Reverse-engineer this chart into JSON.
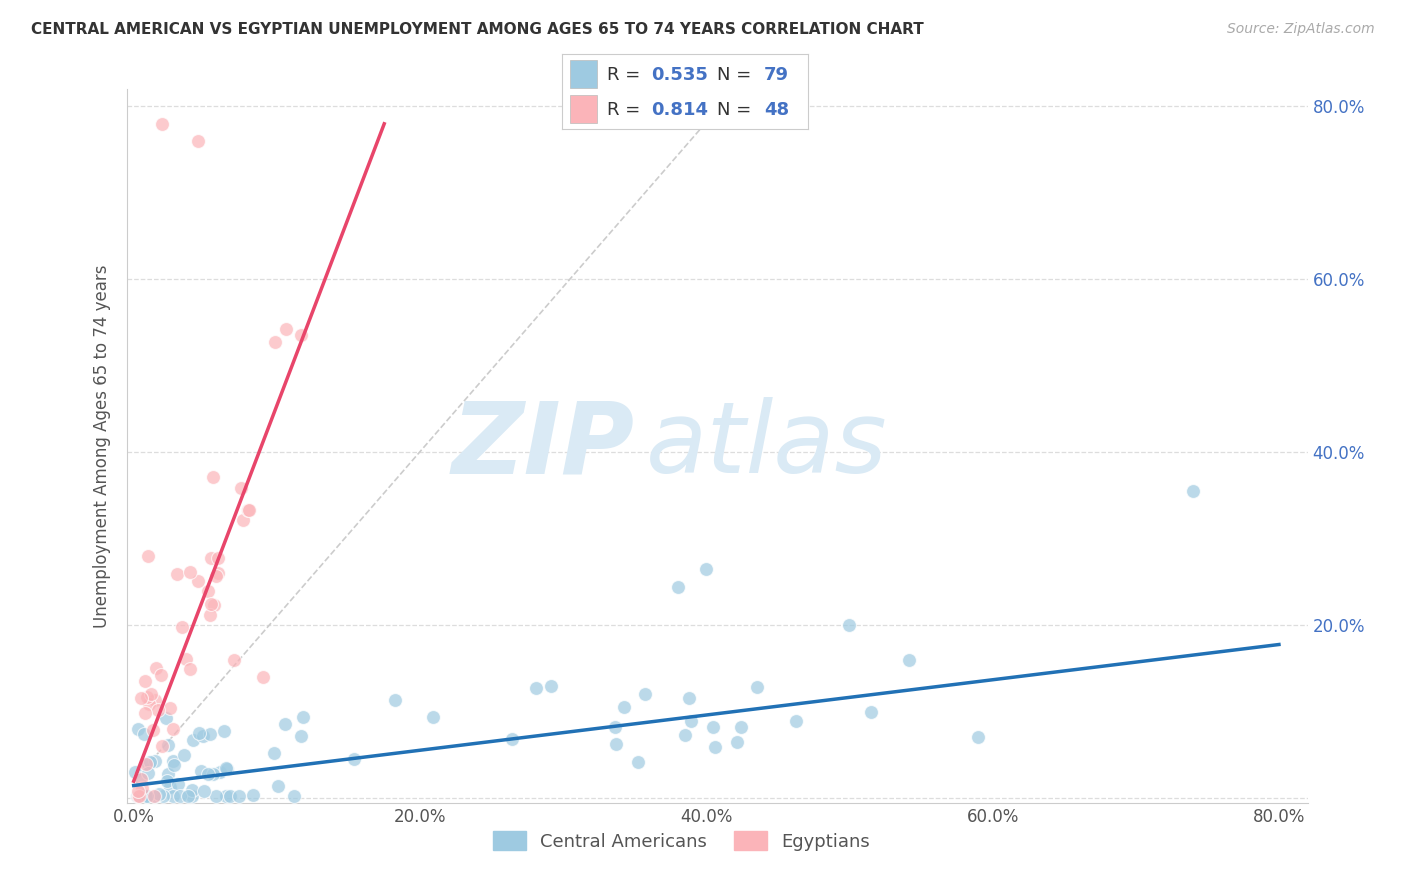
{
  "title": "CENTRAL AMERICAN VS EGYPTIAN UNEMPLOYMENT AMONG AGES 65 TO 74 YEARS CORRELATION CHART",
  "source": "Source: ZipAtlas.com",
  "ylabel": "Unemployment Among Ages 65 to 74 years",
  "xlim": [
    -0.01,
    0.82
  ],
  "ylim": [
    -0.01,
    0.82
  ],
  "xticks": [
    0.0,
    0.2,
    0.4,
    0.6,
    0.8
  ],
  "yticks": [
    0.0,
    0.2,
    0.4,
    0.6,
    0.8
  ],
  "xticklabels": [
    "0.0%",
    "20.0%",
    "40.0%",
    "60.0%",
    "80.0%"
  ],
  "yticklabels_right": [
    "80.0%",
    "60.0%",
    "40.0%",
    "20.0%",
    ""
  ],
  "R_blue": 0.535,
  "N_blue": 79,
  "R_pink": 0.814,
  "N_pink": 48,
  "legend_label_blue": "Central Americans",
  "legend_label_pink": "Egyptians",
  "blue_color": "#9ecae1",
  "pink_color": "#fbb4b9",
  "blue_line_color": "#2171b5",
  "pink_line_color": "#e8456a",
  "dashed_line_color": "#cccccc",
  "watermark_color": "#daeaf5",
  "grid_color": "#dddddd",
  "title_color": "#333333",
  "ytick_color": "#4472c4",
  "xtick_color": "#555555",
  "ylabel_color": "#555555"
}
